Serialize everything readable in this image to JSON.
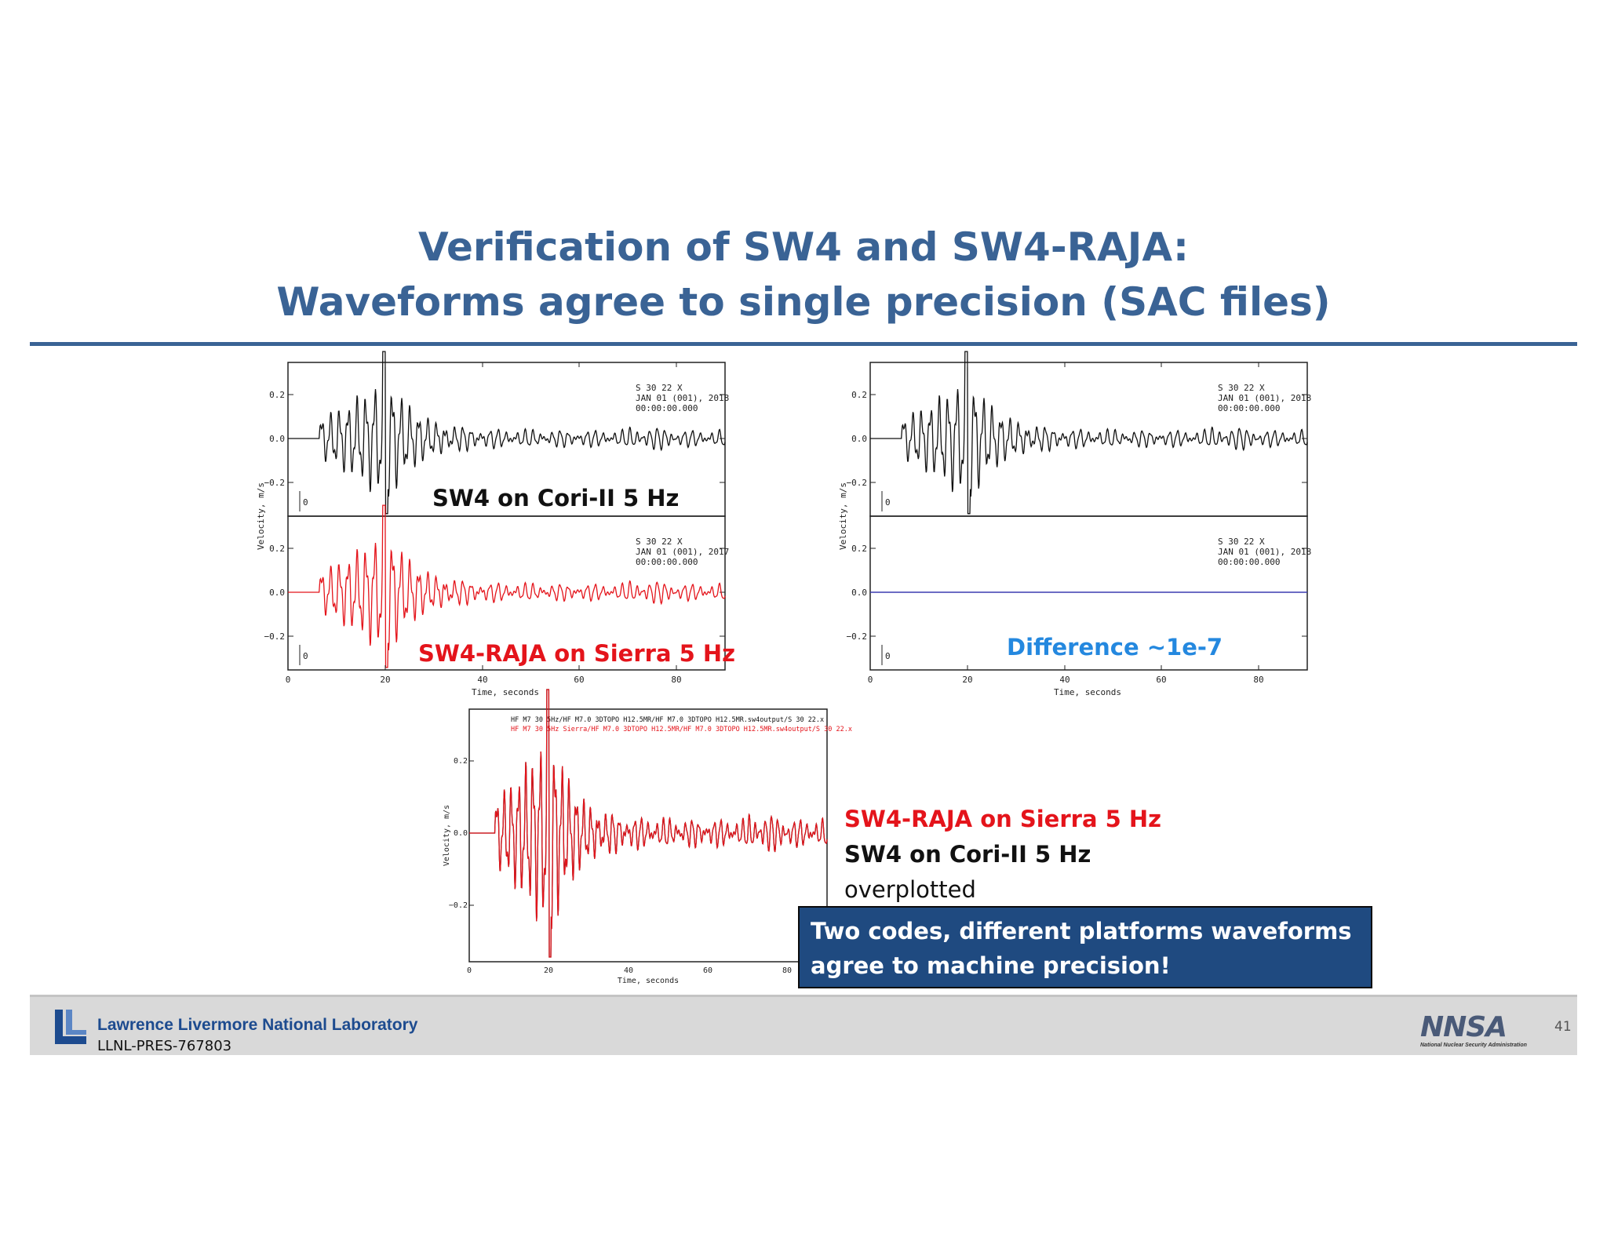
{
  "slide": {
    "title_line1": "Verification of SW4 and SW4-RAJA:",
    "title_line2": "Waveforms agree to single precision (SAC files)"
  },
  "colors": {
    "title": "#3a6395",
    "sw4_trace": "#111111",
    "raja_trace": "#e4141b",
    "difference_label": "#2488df",
    "difference_trace": "#3b3bb0",
    "callout_bg": "#1f4a80"
  },
  "captions": {
    "sw4": "SW4 on Cori-II 5 Hz",
    "raja": "SW4-RAJA on Sierra 5 Hz",
    "difference": "Difference ~1e-7"
  },
  "overlay_note": {
    "line1": "SW4-RAJA on Sierra 5 Hz",
    "line2": "SW4 on Cori-II 5 Hz",
    "line3": "overplotted"
  },
  "callout": {
    "line1": "Two codes, different platforms waveforms",
    "line2": "agree to machine precision!"
  },
  "footer": {
    "lab_name": "Lawrence Livermore National Laboratory",
    "pres_id": "LLNL-PRES-767803",
    "nnsa_word": "NNSA",
    "nnsa_sub": "National Nuclear Security Administration",
    "page_number": "41"
  },
  "chart_data": [
    {
      "type": "line",
      "panel": "left-top",
      "series": [
        {
          "name": "SW4 on Cori-II 5 Hz",
          "color": "#111111"
        }
      ],
      "header": [
        "S 30 22 X",
        "JAN 01 (001), 2018",
        "00:00:00.000"
      ],
      "marker": "0",
      "ylabel": "Velocity, m/s",
      "yticks": [
        "0.2",
        "0.0",
        "−0.2"
      ],
      "ylim": [
        -0.36,
        0.36
      ],
      "xlim": [
        0,
        90
      ]
    },
    {
      "type": "line",
      "panel": "left-bottom",
      "series": [
        {
          "name": "SW4-RAJA on Sierra 5 Hz",
          "color": "#e4141b"
        }
      ],
      "header": [
        "S 30 22 X",
        "JAN 01 (001), 2017",
        "00:00:00.000"
      ],
      "marker": "0",
      "yticks": [
        "0.2",
        "0.0",
        "−0.2"
      ],
      "ylim": [
        -0.36,
        0.36
      ],
      "xlim": [
        0,
        90
      ],
      "xticks": [
        "0",
        "20",
        "40",
        "60",
        "80"
      ],
      "xlabel": "Time, seconds"
    },
    {
      "type": "line",
      "panel": "right-top",
      "series": [
        {
          "name": "SW4",
          "color": "#111111"
        }
      ],
      "header": [
        "S 30 22 X",
        "JAN 01 (001), 2018",
        "00:00:00.000"
      ],
      "marker": "0",
      "ylabel": "Velocity, m/s",
      "yticks": [
        "0.2",
        "0.0",
        "−0.2"
      ],
      "ylim": [
        -0.36,
        0.36
      ],
      "xlim": [
        0,
        90
      ]
    },
    {
      "type": "line",
      "panel": "right-bottom",
      "series": [
        {
          "name": "Difference ~1e-7",
          "color": "#3b3bb0",
          "values_const": 0.0
        }
      ],
      "header": [
        "S 30 22 X",
        "JAN 01 (001), 2018",
        "00:00:00.000"
      ],
      "marker": "0",
      "yticks": [
        "0.2",
        "0.0",
        "−0.2"
      ],
      "ylim": [
        -0.36,
        0.36
      ],
      "xlim": [
        0,
        90
      ],
      "xticks": [
        "0",
        "20",
        "40",
        "60",
        "80"
      ],
      "xlabel": "Time, seconds"
    },
    {
      "type": "line",
      "panel": "overlay",
      "series": [
        {
          "name": "SW4 on Cori-II 5 Hz",
          "color": "#111111"
        },
        {
          "name": "SW4-RAJA on Sierra 5 Hz",
          "color": "#e4141b"
        }
      ],
      "legend": [
        "HF M7 30 5Hz/HF M7.0 3DTOPO H12.5MR/HF M7.0 3DTOPO H12.5MR.sw4output/S 30 22.x",
        "HF M7 30 5Hz Sierra/HF M7.0 3DTOPO H12.5MR/HF M7.0 3DTOPO H12.5MR.sw4output/S 30 22.x"
      ],
      "ylabel": "Velocity, m/s",
      "yticks": [
        "0.2",
        "0.0",
        "−0.2"
      ],
      "ylim": [
        -0.36,
        0.36
      ],
      "xlim": [
        0,
        90
      ],
      "xticks": [
        "0",
        "20",
        "40",
        "60",
        "80"
      ],
      "xlabel": "Time, seconds"
    }
  ]
}
